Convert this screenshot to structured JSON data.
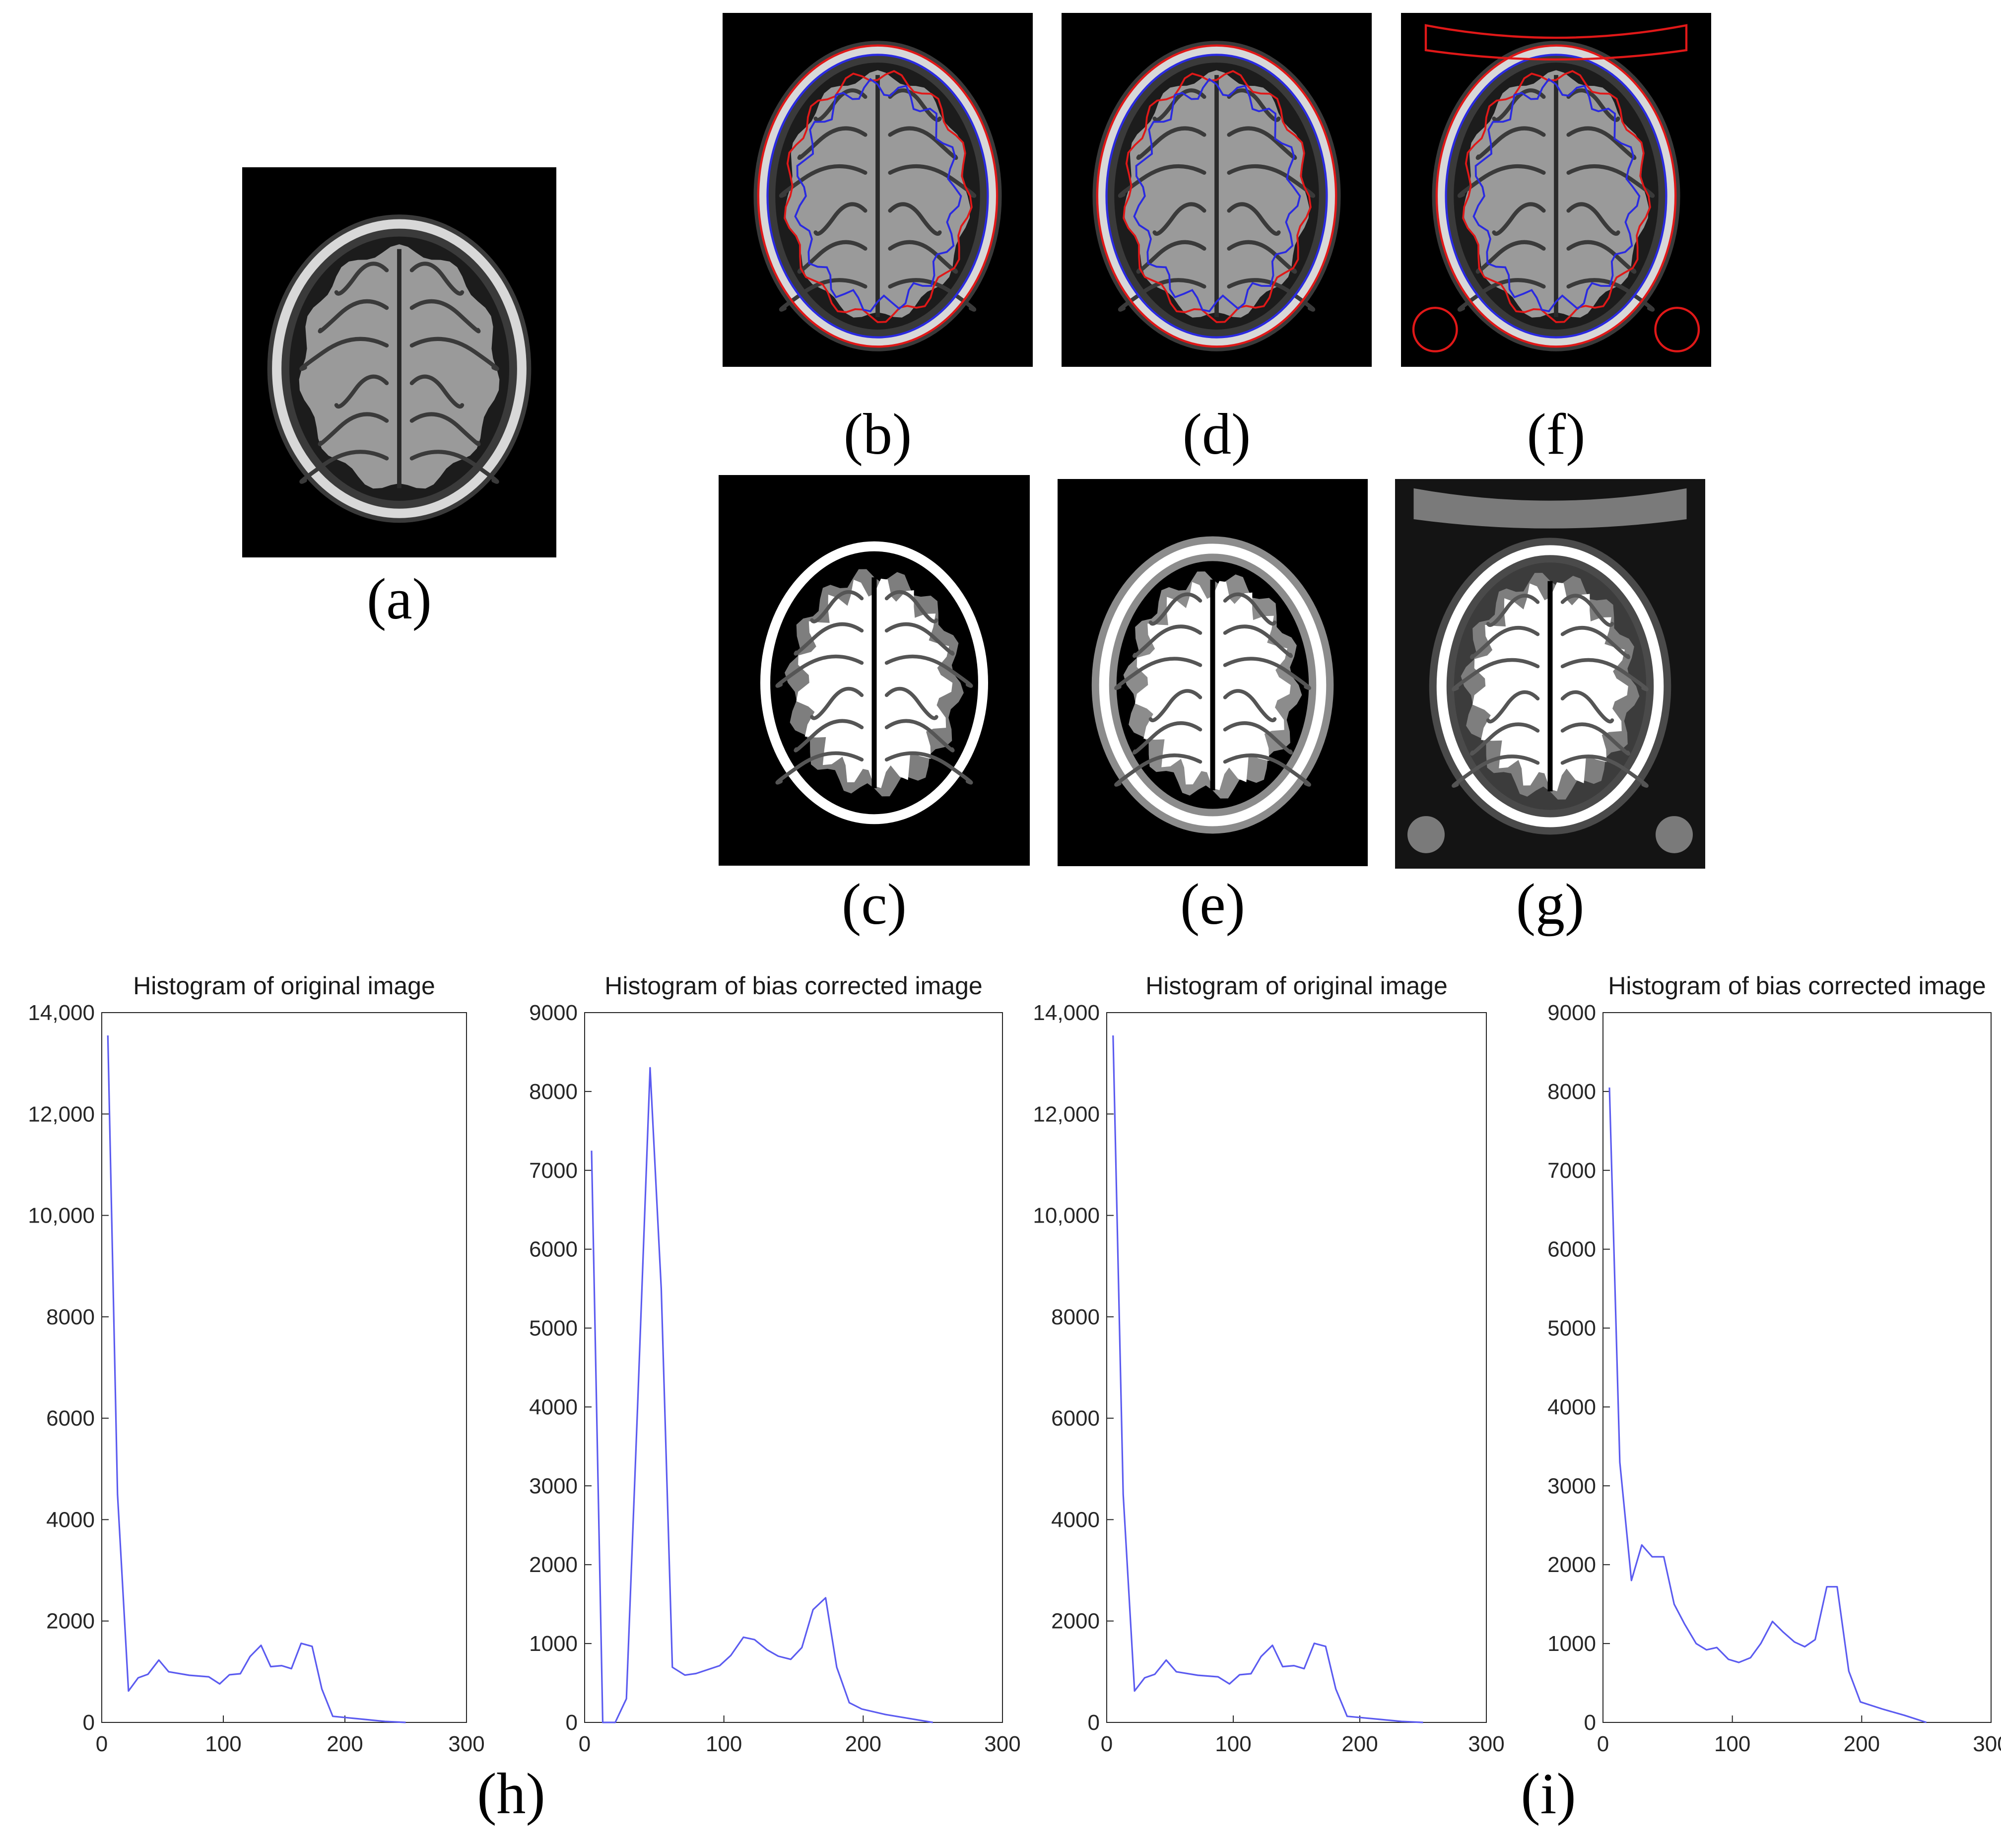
{
  "figure": {
    "panels": [
      {
        "id": "a",
        "caption": "(a)",
        "kind": "mri"
      },
      {
        "id": "b",
        "caption": "(b)",
        "kind": "contour-skull"
      },
      {
        "id": "d",
        "caption": "(d)",
        "kind": "contour-skull"
      },
      {
        "id": "f",
        "caption": "(f)",
        "kind": "contour-blobs"
      },
      {
        "id": "c",
        "caption": "(c)",
        "kind": "seg-black"
      },
      {
        "id": "e",
        "caption": "(e)",
        "kind": "seg-gray"
      },
      {
        "id": "g",
        "caption": "(g)",
        "kind": "seg-blobs"
      }
    ],
    "group_captions": {
      "h": "(h)",
      "i": "(i)"
    },
    "colors": {
      "contour_outer": "#e01818",
      "contour_inner": "#2a2ae0",
      "line": "#5b5bf0"
    }
  },
  "chart_data": [
    {
      "type": "line",
      "title": "Histogram of original image",
      "xlim": [
        0,
        300
      ],
      "ylim": [
        0,
        14000
      ],
      "xticks": [
        "0",
        "100",
        "200",
        "300"
      ],
      "yticks": [
        "0",
        "2000",
        "4000",
        "6000",
        "8000",
        "10,000",
        "12,000",
        "14,000"
      ],
      "series": [
        {
          "x": [
            5,
            13,
            22,
            30,
            38,
            47,
            55,
            72,
            88,
            97,
            105,
            114,
            122,
            131,
            139,
            148,
            156,
            164,
            173,
            181,
            190,
            199,
            216,
            233,
            250
          ],
          "y": [
            13550,
            4500,
            620,
            880,
            950,
            1230,
            1000,
            930,
            900,
            760,
            940,
            960,
            1300,
            1520,
            1100,
            1120,
            1060,
            1560,
            1500,
            660,
            120,
            100,
            60,
            20,
            0
          ]
        }
      ]
    },
    {
      "type": "line",
      "title": "Histogram of bias corrected image",
      "xlim": [
        0,
        300
      ],
      "ylim": [
        0,
        9000
      ],
      "xticks": [
        "0",
        "100",
        "200",
        "300"
      ],
      "yticks": [
        "0",
        "1000",
        "2000",
        "3000",
        "4000",
        "5000",
        "6000",
        "7000",
        "8000",
        "9000"
      ],
      "series": [
        {
          "x": [
            5,
            13,
            22,
            30,
            38,
            47,
            55,
            63,
            72,
            80,
            97,
            105,
            114,
            122,
            131,
            139,
            148,
            156,
            164,
            173,
            181,
            190,
            199,
            216,
            233,
            250
          ],
          "y": [
            7250,
            0,
            0,
            300,
            4000,
            8300,
            5500,
            700,
            600,
            620,
            720,
            850,
            1080,
            1050,
            920,
            840,
            800,
            950,
            1430,
            1580,
            700,
            250,
            170,
            100,
            50,
            0
          ]
        }
      ]
    },
    {
      "type": "line",
      "title": "Histogram of original image",
      "xlim": [
        0,
        300
      ],
      "ylim": [
        0,
        14000
      ],
      "xticks": [
        "0",
        "100",
        "200",
        "300"
      ],
      "yticks": [
        "0",
        "2000",
        "4000",
        "6000",
        "8000",
        "10,000",
        "12,000",
        "14,000"
      ],
      "series": [
        {
          "x": [
            5,
            13,
            22,
            30,
            38,
            47,
            55,
            72,
            88,
            97,
            105,
            114,
            122,
            131,
            139,
            148,
            156,
            164,
            173,
            181,
            190,
            199,
            216,
            233,
            250
          ],
          "y": [
            13550,
            4500,
            620,
            880,
            950,
            1230,
            1000,
            930,
            900,
            760,
            940,
            960,
            1300,
            1520,
            1100,
            1120,
            1060,
            1560,
            1500,
            660,
            120,
            100,
            60,
            20,
            0
          ]
        }
      ]
    },
    {
      "type": "line",
      "title": "Histogram of bias corrected image",
      "xlim": [
        0,
        300
      ],
      "ylim": [
        0,
        9000
      ],
      "xticks": [
        "0",
        "100",
        "200",
        "300"
      ],
      "yticks": [
        "0",
        "1000",
        "2000",
        "3000",
        "4000",
        "5000",
        "6000",
        "7000",
        "8000",
        "9000"
      ],
      "series": [
        {
          "x": [
            5,
            13,
            22,
            30,
            38,
            47,
            55,
            63,
            72,
            80,
            88,
            97,
            105,
            114,
            122,
            131,
            139,
            148,
            156,
            164,
            173,
            181,
            190,
            199,
            216,
            233,
            250
          ],
          "y": [
            8050,
            3300,
            1800,
            2250,
            2100,
            2100,
            1500,
            1250,
            1000,
            920,
            950,
            800,
            760,
            820,
            1000,
            1280,
            1150,
            1020,
            960,
            1050,
            1720,
            1720,
            650,
            260,
            170,
            90,
            0
          ]
        }
      ]
    }
  ]
}
